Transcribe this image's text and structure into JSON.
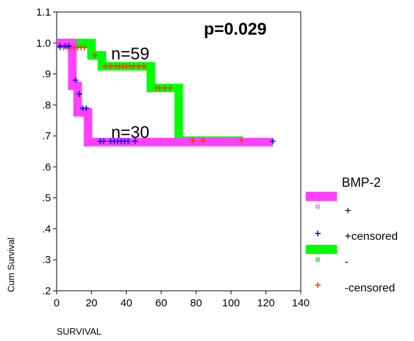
{
  "chart_data": {
    "type": "line",
    "subtype": "kaplan-meier-survival",
    "xlabel": "SURVIVAL",
    "ylabel": "Cum Survival",
    "xlim": [
      0,
      140
    ],
    "ylim": [
      0.2,
      1.1
    ],
    "x_ticks": [
      0,
      20,
      40,
      60,
      80,
      100,
      120,
      140
    ],
    "x_tick_labels": [
      "0",
      "20",
      "40",
      "60",
      "80",
      "100",
      "120",
      "140"
    ],
    "y_ticks": [
      0.2,
      0.3,
      0.4,
      0.5,
      0.6,
      0.7,
      0.8,
      0.9,
      1.0,
      1.1
    ],
    "y_tick_labels": [
      ".2",
      ".3",
      ".4",
      ".5",
      ".6",
      ".7",
      ".8",
      ".9",
      "1.0",
      "1.1"
    ],
    "grid": false,
    "legend_position": "right",
    "legend_title": "BMP-2",
    "p_value_label": "p=0.029",
    "series": [
      {
        "name": "+",
        "color": "#ff40ff",
        "n_label": "n=30",
        "steps": [
          [
            0,
            1.0
          ],
          [
            9,
            1.0
          ],
          [
            9,
            0.862
          ],
          [
            12,
            0.862
          ],
          [
            12,
            0.776
          ],
          [
            18,
            0.776
          ],
          [
            18,
            0.68
          ],
          [
            124,
            0.68
          ]
        ],
        "censored_name": "+censored",
        "censored_color": "#0000ff",
        "censored": [
          [
            2,
            0.99
          ],
          [
            5,
            0.99
          ],
          [
            7,
            0.99
          ],
          [
            11,
            0.88
          ],
          [
            13,
            0.835
          ],
          [
            15,
            0.79
          ],
          [
            17,
            0.79
          ],
          [
            25,
            0.683
          ],
          [
            27,
            0.683
          ],
          [
            31,
            0.683
          ],
          [
            33,
            0.683
          ],
          [
            35,
            0.683
          ],
          [
            37,
            0.683
          ],
          [
            39,
            0.683
          ],
          [
            41,
            0.683
          ],
          [
            45,
            0.683
          ],
          [
            124,
            0.683
          ]
        ]
      },
      {
        "name": "-",
        "color": "#00ff00",
        "n_label": "n=59",
        "steps": [
          [
            0,
            1.0
          ],
          [
            20,
            1.0
          ],
          [
            20,
            0.96
          ],
          [
            26,
            0.96
          ],
          [
            26,
            0.925
          ],
          [
            54,
            0.925
          ],
          [
            54,
            0.855
          ],
          [
            70,
            0.855
          ],
          [
            70,
            0.685
          ],
          [
            107,
            0.685
          ]
        ],
        "censored_name": "-censored",
        "censored_color": "#ff3300",
        "censored": [
          [
            2,
            0.985
          ],
          [
            4,
            0.985
          ],
          [
            6,
            0.985
          ],
          [
            8,
            0.985
          ],
          [
            10,
            0.985
          ],
          [
            12,
            0.985
          ],
          [
            14,
            0.985
          ],
          [
            16,
            0.985
          ],
          [
            22,
            0.96
          ],
          [
            28,
            0.925
          ],
          [
            31,
            0.925
          ],
          [
            34,
            0.925
          ],
          [
            36,
            0.925
          ],
          [
            38,
            0.925
          ],
          [
            40,
            0.925
          ],
          [
            42,
            0.925
          ],
          [
            44,
            0.925
          ],
          [
            47,
            0.925
          ],
          [
            50,
            0.925
          ],
          [
            57,
            0.855
          ],
          [
            59,
            0.855
          ],
          [
            62,
            0.855
          ],
          [
            65,
            0.855
          ],
          [
            78,
            0.685
          ],
          [
            84,
            0.685
          ],
          [
            106,
            0.685
          ]
        ]
      }
    ]
  }
}
